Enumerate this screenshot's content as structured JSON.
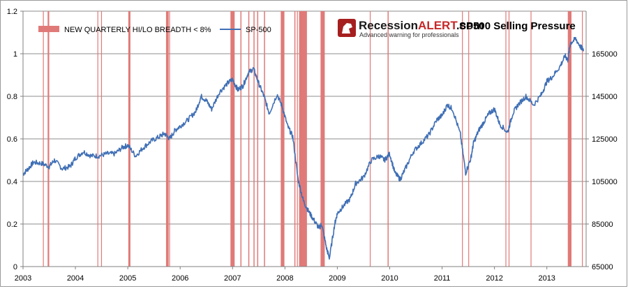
{
  "chart_data": {
    "type": "line",
    "title": "SP500 Selling Pressure",
    "brand": {
      "name_part1": "Recession",
      "name_part2": "ALERT",
      "name_part3": ".com",
      "tagline": "Advanced warning for professionals"
    },
    "legend": [
      {
        "name": "NEW QUARTERLY HI/LO BREADTH < 8%",
        "kind": "bar",
        "color": "#e07a78"
      },
      {
        "name": "SP-500",
        "kind": "line",
        "color": "#3f6fb5"
      }
    ],
    "x_ticks": [
      "2003",
      "2004",
      "2005",
      "2006",
      "2007",
      "2008",
      "2009",
      "2010",
      "2011",
      "2012",
      "2013"
    ],
    "x_range": [
      2003.0,
      2013.75
    ],
    "y_left": {
      "range": [
        0,
        1.2
      ],
      "ticks": [
        "0",
        "0.2",
        "0.4",
        "0.6",
        "0.8",
        "1",
        "1.2"
      ]
    },
    "y_right": {
      "range": [
        65000,
        185000
      ],
      "ticks": [
        "65000",
        "85000",
        "105000",
        "125000",
        "145000",
        "165000"
      ]
    },
    "grid": true,
    "series_line": {
      "name": "SP-500",
      "color": "#3f6fb5",
      "x": [
        2003.0,
        2003.1,
        2003.2,
        2003.35,
        2003.5,
        2003.6,
        2003.75,
        2003.9,
        2004.0,
        2004.15,
        2004.3,
        2004.45,
        2004.6,
        2004.75,
        2004.9,
        2005.0,
        2005.15,
        2005.3,
        2005.45,
        2005.6,
        2005.7,
        2005.8,
        2005.9,
        2006.0,
        2006.15,
        2006.3,
        2006.4,
        2006.5,
        2006.6,
        2006.75,
        2006.9,
        2007.0,
        2007.1,
        2007.2,
        2007.3,
        2007.4,
        2007.5,
        2007.6,
        2007.7,
        2007.85,
        2007.95,
        2008.05,
        2008.15,
        2008.25,
        2008.35,
        2008.45,
        2008.55,
        2008.65,
        2008.7,
        2008.8,
        2008.85,
        2008.95,
        2009.0,
        2009.1,
        2009.25,
        2009.35,
        2009.5,
        2009.65,
        2009.8,
        2009.9,
        2010.0,
        2010.1,
        2010.2,
        2010.3,
        2010.45,
        2010.6,
        2010.75,
        2010.9,
        2011.0,
        2011.1,
        2011.2,
        2011.35,
        2011.45,
        2011.55,
        2011.6,
        2011.7,
        2011.8,
        2011.9,
        2012.0,
        2012.1,
        2012.25,
        2012.35,
        2012.45,
        2012.6,
        2012.75,
        2012.9,
        2013.0,
        2013.1,
        2013.25,
        2013.35,
        2013.4,
        2013.45,
        2013.55,
        2013.65,
        2013.7
      ],
      "y": [
        108500,
        111000,
        114000,
        113500,
        112000,
        115000,
        111000,
        112000,
        116000,
        119000,
        117000,
        117000,
        118000,
        118000,
        121000,
        122000,
        117000,
        121000,
        124000,
        126000,
        127500,
        125000,
        129000,
        131000,
        134000,
        138000,
        145000,
        143000,
        139000,
        147000,
        151000,
        153000,
        148000,
        150000,
        156000,
        158000,
        151000,
        145000,
        137000,
        146000,
        140000,
        131000,
        126000,
        106000,
        96000,
        91000,
        87000,
        83000,
        85000,
        73000,
        69000,
        85000,
        90000,
        93000,
        97000,
        104000,
        107000,
        115000,
        117000,
        115000,
        118000,
        109000,
        106000,
        111000,
        119000,
        123000,
        127000,
        134000,
        136000,
        141000,
        139000,
        127000,
        109000,
        116000,
        123000,
        129000,
        133000,
        137000,
        139000,
        132000,
        128000,
        137000,
        141000,
        145000,
        141000,
        146000,
        152000,
        154000,
        159000,
        164000,
        162000,
        170000,
        172000,
        168000,
        167000
      ]
    },
    "series_bars": {
      "name": "NEW QUARTERLY HI/LO BREADTH < 8%",
      "color": "#e07a78",
      "intervals": [
        [
          2003.38,
          2003.395
        ],
        [
          2003.47,
          2003.5
        ],
        [
          2004.42,
          2004.435
        ],
        [
          2004.49,
          2004.5
        ],
        [
          2005.01,
          2005.05
        ],
        [
          2005.73,
          2005.78
        ],
        [
          2005.79,
          2005.8
        ],
        [
          2006.96,
          2007.04
        ],
        [
          2007.15,
          2007.17
        ],
        [
          2007.3,
          2007.32
        ],
        [
          2007.4,
          2007.42
        ],
        [
          2007.47,
          2007.49
        ],
        [
          2007.6,
          2007.62
        ],
        [
          2007.92,
          2007.99
        ],
        [
          2008.18,
          2008.2
        ],
        [
          2008.23,
          2008.24
        ],
        [
          2008.27,
          2008.42
        ],
        [
          2008.68,
          2008.76
        ],
        [
          2009.62,
          2009.635
        ],
        [
          2009.96,
          2009.98
        ],
        [
          2011.38,
          2011.39
        ],
        [
          2011.5,
          2011.51
        ],
        [
          2012.21,
          2012.22
        ],
        [
          2012.27,
          2012.28
        ],
        [
          2012.69,
          2012.7
        ],
        [
          2013.4,
          2013.47
        ],
        [
          2013.67,
          2013.68
        ]
      ]
    }
  }
}
